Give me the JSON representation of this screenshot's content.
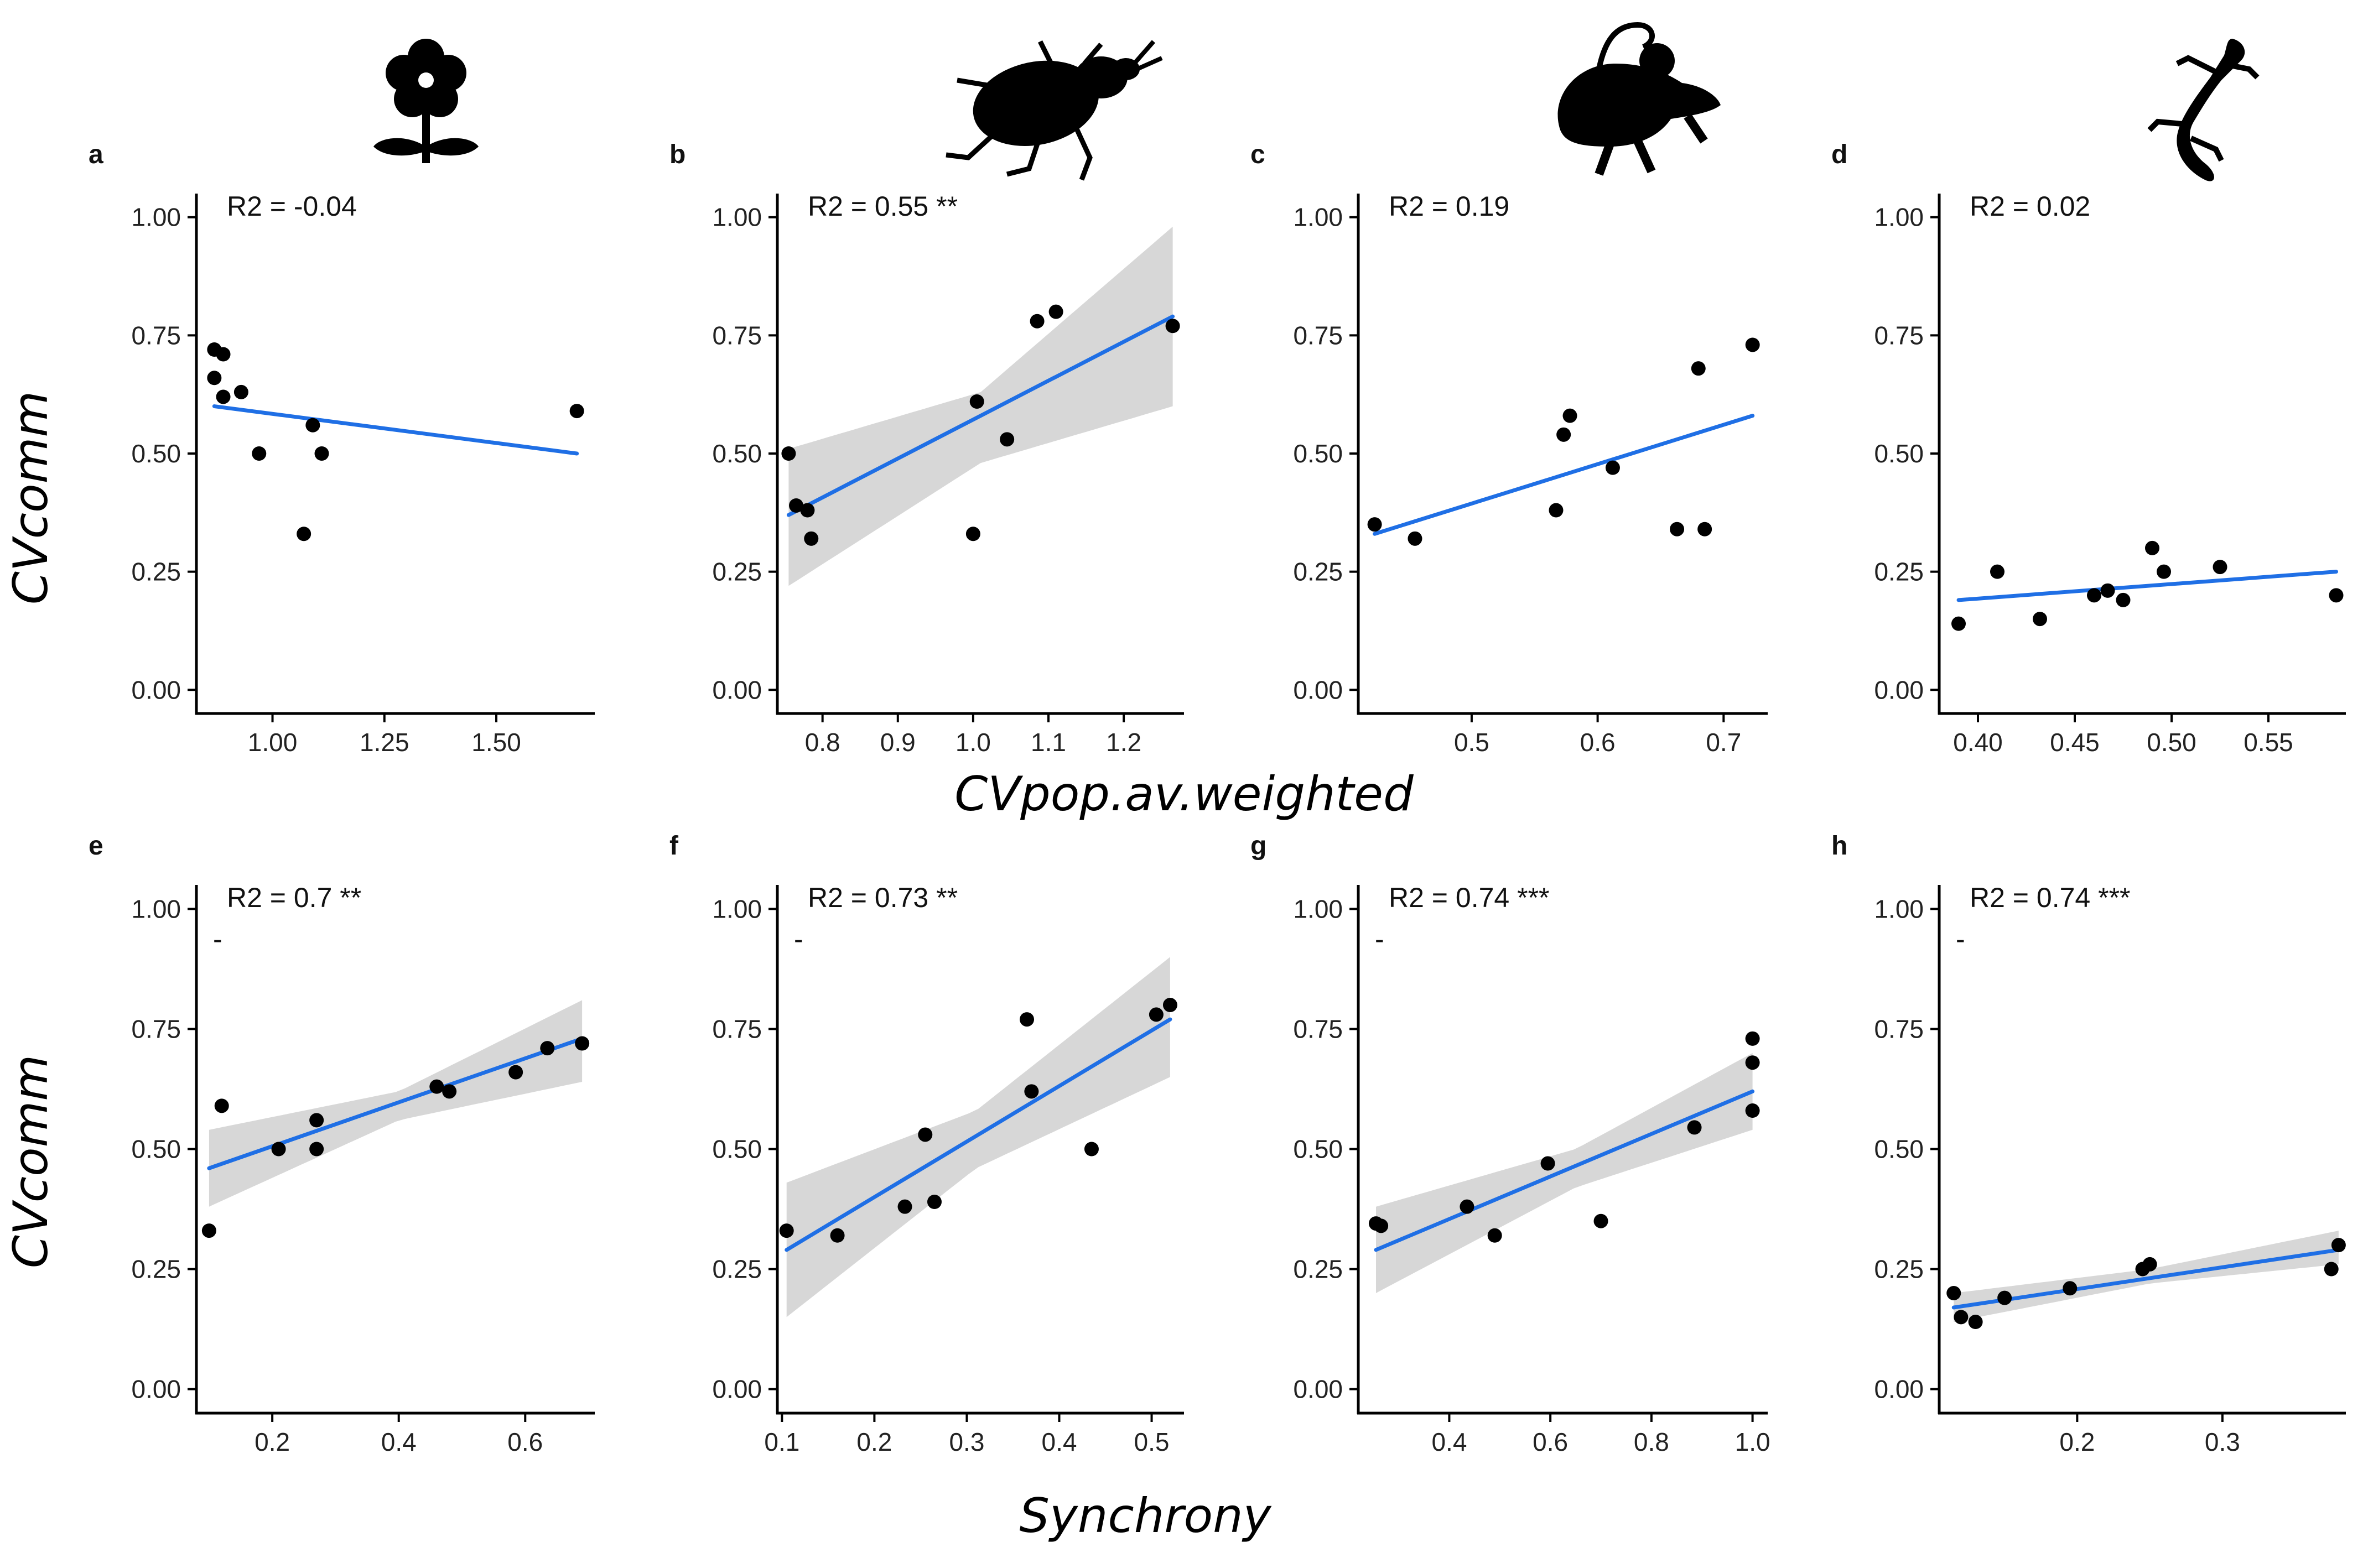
{
  "figure_labels": {
    "y_label_top": "CVcomm",
    "y_label_bottom": "CVcomm",
    "x_label_top": "CVpop.av.weighted",
    "x_label_bottom": "Synchrony"
  },
  "icons": [
    "flower-icon",
    "beetle-icon",
    "mouse-icon",
    "lizard-icon"
  ],
  "colors": {
    "fit_line": "#1f6fe5",
    "ci_band": "#d3d3d3",
    "points": "#000000"
  },
  "chart_data": [
    {
      "type": "scatter",
      "panel": "a",
      "annotation": "R2 = -0.04",
      "dash": "",
      "xlim": [
        0.83,
        1.72
      ],
      "ylim": [
        -0.05,
        1.05
      ],
      "xticks": [
        1.0,
        1.25,
        1.5
      ],
      "xtick_labels": [
        "1.00",
        "1.25",
        "1.50"
      ],
      "yticks": [
        0,
        0.25,
        0.5,
        0.75,
        1.0
      ],
      "ytick_labels": [
        "0.00",
        "0.25",
        "0.50",
        "0.75",
        "1.00"
      ],
      "points": [
        [
          0.87,
          0.72
        ],
        [
          0.89,
          0.71
        ],
        [
          0.87,
          0.66
        ],
        [
          0.89,
          0.62
        ],
        [
          0.93,
          0.63
        ],
        [
          0.97,
          0.5
        ],
        [
          1.07,
          0.33
        ],
        [
          1.09,
          0.56
        ],
        [
          1.11,
          0.5
        ],
        [
          1.68,
          0.59
        ]
      ],
      "fit": {
        "x": [
          0.87,
          1.68
        ],
        "y": [
          0.6,
          0.5
        ]
      }
    },
    {
      "type": "scatter",
      "panel": "b",
      "annotation": "R2 = 0.55 **",
      "dash": "",
      "xlim": [
        0.74,
        1.28
      ],
      "ylim": [
        -0.05,
        1.05
      ],
      "xticks": [
        0.8,
        0.9,
        1.0,
        1.1,
        1.2
      ],
      "xtick_labels": [
        "0.8",
        "0.9",
        "1.0",
        "1.1",
        "1.2"
      ],
      "yticks": [
        0,
        0.25,
        0.5,
        0.75,
        1.0
      ],
      "ytick_labels": [
        "0.00",
        "0.25",
        "0.50",
        "0.75",
        "1.00"
      ],
      "points": [
        [
          0.755,
          0.5
        ],
        [
          0.765,
          0.39
        ],
        [
          0.78,
          0.38
        ],
        [
          0.785,
          0.32
        ],
        [
          1.0,
          0.33
        ],
        [
          1.005,
          0.61
        ],
        [
          1.045,
          0.53
        ],
        [
          1.085,
          0.78
        ],
        [
          1.11,
          0.8
        ],
        [
          1.265,
          0.77
        ]
      ],
      "fit": {
        "x": [
          0.755,
          1.265
        ],
        "y": [
          0.37,
          0.79
        ]
      },
      "ci": {
        "x": [
          0.755,
          1.01,
          1.265
        ],
        "lower": [
          0.22,
          0.48,
          0.6
        ],
        "upper": [
          0.51,
          0.63,
          0.98
        ]
      }
    },
    {
      "type": "scatter",
      "panel": "c",
      "annotation": "R2 = 0.19",
      "dash": "",
      "xlim": [
        0.41,
        0.735
      ],
      "ylim": [
        -0.05,
        1.05
      ],
      "xticks": [
        0.5,
        0.6,
        0.7
      ],
      "xtick_labels": [
        "0.5",
        "0.6",
        "0.7"
      ],
      "yticks": [
        0,
        0.25,
        0.5,
        0.75,
        1.0
      ],
      "ytick_labels": [
        "0.00",
        "0.25",
        "0.50",
        "0.75",
        "1.00"
      ],
      "points": [
        [
          0.423,
          0.35
        ],
        [
          0.455,
          0.32
        ],
        [
          0.567,
          0.38
        ],
        [
          0.573,
          0.54
        ],
        [
          0.578,
          0.58
        ],
        [
          0.612,
          0.47
        ],
        [
          0.663,
          0.34
        ],
        [
          0.68,
          0.68
        ],
        [
          0.685,
          0.34
        ],
        [
          0.723,
          0.73
        ]
      ],
      "fit": {
        "x": [
          0.423,
          0.723
        ],
        "y": [
          0.33,
          0.58
        ]
      }
    },
    {
      "type": "scatter",
      "panel": "d",
      "annotation": "R2 = 0.02",
      "dash": "",
      "xlim": [
        0.38,
        0.59
      ],
      "ylim": [
        -0.05,
        1.05
      ],
      "xticks": [
        0.4,
        0.45,
        0.5,
        0.55
      ],
      "xtick_labels": [
        "0.40",
        "0.45",
        "0.50",
        "0.55"
      ],
      "yticks": [
        0,
        0.25,
        0.5,
        0.75,
        1.0
      ],
      "ytick_labels": [
        "0.00",
        "0.25",
        "0.50",
        "0.75",
        "1.00"
      ],
      "points": [
        [
          0.39,
          0.14
        ],
        [
          0.41,
          0.25
        ],
        [
          0.432,
          0.15
        ],
        [
          0.46,
          0.2
        ],
        [
          0.467,
          0.21
        ],
        [
          0.475,
          0.19
        ],
        [
          0.49,
          0.3
        ],
        [
          0.496,
          0.25
        ],
        [
          0.525,
          0.26
        ],
        [
          0.585,
          0.2
        ]
      ],
      "fit": {
        "x": [
          0.39,
          0.585
        ],
        "y": [
          0.19,
          0.25
        ]
      }
    },
    {
      "type": "scatter",
      "panel": "e",
      "annotation": "R2 = 0.7 **",
      "dash": "-",
      "xlim": [
        0.08,
        0.71
      ],
      "ylim": [
        -0.05,
        1.05
      ],
      "xticks": [
        0.2,
        0.4,
        0.6
      ],
      "xtick_labels": [
        "0.2",
        "0.4",
        "0.6"
      ],
      "yticks": [
        0,
        0.25,
        0.5,
        0.75,
        1.0
      ],
      "ytick_labels": [
        "0.00",
        "0.25",
        "0.50",
        "0.75",
        "1.00"
      ],
      "points": [
        [
          0.1,
          0.33
        ],
        [
          0.12,
          0.59
        ],
        [
          0.21,
          0.5
        ],
        [
          0.27,
          0.56
        ],
        [
          0.27,
          0.5
        ],
        [
          0.46,
          0.63
        ],
        [
          0.48,
          0.62
        ],
        [
          0.585,
          0.66
        ],
        [
          0.635,
          0.71
        ],
        [
          0.69,
          0.72
        ]
      ],
      "fit": {
        "x": [
          0.1,
          0.69
        ],
        "y": [
          0.46,
          0.73
        ]
      },
      "ci": {
        "x": [
          0.1,
          0.4,
          0.69
        ],
        "lower": [
          0.38,
          0.56,
          0.64
        ],
        "upper": [
          0.54,
          0.62,
          0.81
        ]
      }
    },
    {
      "type": "scatter",
      "panel": "f",
      "annotation": "R2 = 0.73 **",
      "dash": "-",
      "xlim": [
        0.095,
        0.535
      ],
      "ylim": [
        -0.05,
        1.05
      ],
      "xticks": [
        0.1,
        0.2,
        0.3,
        0.4,
        0.5
      ],
      "xtick_labels": [
        "0.1",
        "0.2",
        "0.3",
        "0.4",
        "0.5"
      ],
      "yticks": [
        0,
        0.25,
        0.5,
        0.75,
        1.0
      ],
      "ytick_labels": [
        "0.00",
        "0.25",
        "0.50",
        "0.75",
        "1.00"
      ],
      "points": [
        [
          0.105,
          0.33
        ],
        [
          0.16,
          0.32
        ],
        [
          0.233,
          0.38
        ],
        [
          0.255,
          0.53
        ],
        [
          0.265,
          0.39
        ],
        [
          0.365,
          0.77
        ],
        [
          0.37,
          0.62
        ],
        [
          0.435,
          0.5
        ],
        [
          0.505,
          0.78
        ],
        [
          0.52,
          0.8
        ]
      ],
      "fit": {
        "x": [
          0.105,
          0.52
        ],
        "y": [
          0.29,
          0.77
        ]
      },
      "ci": {
        "x": [
          0.105,
          0.31,
          0.52
        ],
        "lower": [
          0.15,
          0.46,
          0.65
        ],
        "upper": [
          0.43,
          0.58,
          0.9
        ]
      }
    },
    {
      "type": "scatter",
      "panel": "g",
      "annotation": "R2 = 0.74 ***",
      "dash": "-",
      "xlim": [
        0.22,
        1.03
      ],
      "ylim": [
        -0.05,
        1.05
      ],
      "xticks": [
        0.4,
        0.6,
        0.8,
        1.0
      ],
      "xtick_labels": [
        "0.4",
        "0.6",
        "0.8",
        "1.0"
      ],
      "yticks": [
        0,
        0.25,
        0.5,
        0.75,
        1.0
      ],
      "ytick_labels": [
        "0.00",
        "0.25",
        "0.50",
        "0.75",
        "1.00"
      ],
      "points": [
        [
          0.255,
          0.345
        ],
        [
          0.265,
          0.34
        ],
        [
          0.435,
          0.38
        ],
        [
          0.49,
          0.32
        ],
        [
          0.595,
          0.47
        ],
        [
          0.7,
          0.35
        ],
        [
          0.885,
          0.545
        ],
        [
          1.0,
          0.58
        ],
        [
          1.0,
          0.68
        ],
        [
          1.0,
          0.73
        ]
      ],
      "fit": {
        "x": [
          0.255,
          1.0
        ],
        "y": [
          0.29,
          0.62
        ]
      },
      "ci": {
        "x": [
          0.255,
          0.65,
          1.0
        ],
        "lower": [
          0.2,
          0.42,
          0.54
        ],
        "upper": [
          0.38,
          0.5,
          0.7
        ]
      }
    },
    {
      "type": "scatter",
      "panel": "h",
      "annotation": "R2 = 0.74 ***",
      "dash": "-",
      "xlim": [
        0.105,
        0.385
      ],
      "ylim": [
        -0.05,
        1.05
      ],
      "xticks": [
        0.2,
        0.3
      ],
      "xtick_labels": [
        "0.2",
        "0.3"
      ],
      "yticks": [
        0,
        0.25,
        0.5,
        0.75,
        1.0
      ],
      "ytick_labels": [
        "0.00",
        "0.25",
        "0.50",
        "0.75",
        "1.00"
      ],
      "points": [
        [
          0.115,
          0.2
        ],
        [
          0.12,
          0.15
        ],
        [
          0.13,
          0.14
        ],
        [
          0.15,
          0.19
        ],
        [
          0.195,
          0.21
        ],
        [
          0.245,
          0.25
        ],
        [
          0.25,
          0.26
        ],
        [
          0.375,
          0.25
        ],
        [
          0.38,
          0.3
        ]
      ],
      "fit": {
        "x": [
          0.115,
          0.38
        ],
        "y": [
          0.17,
          0.29
        ]
      },
      "ci": {
        "x": [
          0.115,
          0.25,
          0.38
        ],
        "lower": [
          0.14,
          0.22,
          0.26
        ],
        "upper": [
          0.2,
          0.25,
          0.33
        ]
      }
    }
  ]
}
